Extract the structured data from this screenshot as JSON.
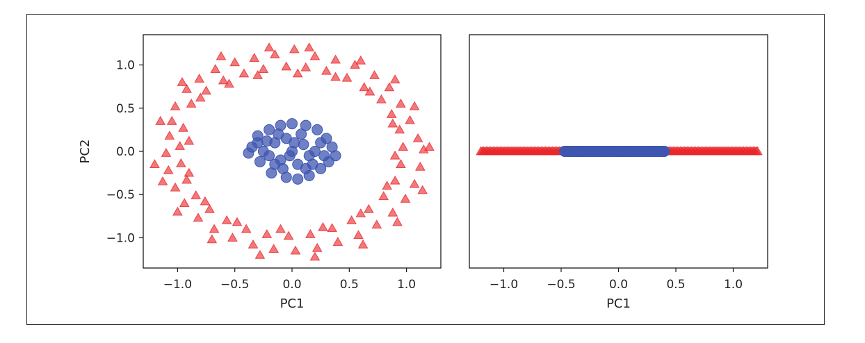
{
  "chart_data": [
    {
      "type": "scatter",
      "xlabel": "PC1",
      "ylabel": "PC2",
      "xlim": [
        -1.3,
        1.3
      ],
      "ylim": [
        -1.35,
        1.35
      ],
      "xticks": [
        -1.0,
        -0.5,
        0.0,
        0.5,
        1.0
      ],
      "xtick_labels": [
        "−1.0",
        "−0.5",
        "0.0",
        "0.5",
        "1.0"
      ],
      "yticks": [
        -1.0,
        -0.5,
        0.0,
        0.5,
        1.0
      ],
      "ytick_labels": [
        "−1.0",
        "−0.5",
        "0.0",
        "0.5",
        "1.0"
      ],
      "series": [
        {
          "marker": "triangle",
          "color": "#e8272b",
          "description_points": [
            [
              -1.02,
              0.52
            ],
            [
              -0.92,
              0.72
            ],
            [
              -0.81,
              0.84
            ],
            [
              -0.67,
              0.95
            ],
            [
              -0.5,
              1.03
            ],
            [
              -0.33,
              1.08
            ],
            [
              -0.15,
              1.12
            ],
            [
              0.02,
              1.18
            ],
            [
              0.2,
              1.1
            ],
            [
              0.38,
              1.06
            ],
            [
              0.55,
              1.0
            ],
            [
              0.72,
              0.88
            ],
            [
              0.85,
              0.74
            ],
            [
              0.95,
              0.55
            ],
            [
              1.03,
              0.36
            ],
            [
              1.1,
              0.15
            ],
            [
              1.15,
              0.02
            ],
            [
              1.12,
              -0.18
            ],
            [
              1.07,
              -0.38
            ],
            [
              0.99,
              -0.55
            ],
            [
              0.88,
              -0.71
            ],
            [
              0.74,
              -0.85
            ],
            [
              0.58,
              -0.97
            ],
            [
              0.4,
              -1.05
            ],
            [
              0.22,
              -1.12
            ],
            [
              0.03,
              -1.15
            ],
            [
              -0.16,
              -1.13
            ],
            [
              -0.34,
              -1.08
            ],
            [
              -0.52,
              -1.0
            ],
            [
              -0.68,
              -0.9
            ],
            [
              -0.82,
              -0.77
            ],
            [
              -0.94,
              -0.6
            ],
            [
              -1.02,
              -0.42
            ],
            [
              -1.08,
              -0.22
            ],
            [
              -1.1,
              -0.02
            ],
            [
              -1.07,
              0.18
            ],
            [
              -1.05,
              0.35
            ],
            [
              -0.88,
              0.55
            ],
            [
              -0.75,
              0.7
            ],
            [
              -0.6,
              0.82
            ],
            [
              -0.42,
              0.9
            ],
            [
              -0.25,
              0.95
            ],
            [
              -0.05,
              0.98
            ],
            [
              0.12,
              0.97
            ],
            [
              0.3,
              0.93
            ],
            [
              0.48,
              0.85
            ],
            [
              0.63,
              0.74
            ],
            [
              0.78,
              0.6
            ],
            [
              0.87,
              0.43
            ],
            [
              0.94,
              0.25
            ],
            [
              0.97,
              0.05
            ],
            [
              0.95,
              -0.15
            ],
            [
              0.9,
              -0.34
            ],
            [
              0.8,
              -0.52
            ],
            [
              0.67,
              -0.67
            ],
            [
              0.52,
              -0.8
            ],
            [
              0.35,
              -0.89
            ],
            [
              0.16,
              -0.96
            ],
            [
              -0.03,
              -0.98
            ],
            [
              -0.22,
              -0.96
            ],
            [
              -0.4,
              -0.9
            ],
            [
              -0.57,
              -0.8
            ],
            [
              -0.72,
              -0.67
            ],
            [
              -0.84,
              -0.51
            ],
            [
              -0.92,
              -0.33
            ],
            [
              -0.97,
              -0.14
            ],
            [
              -0.98,
              0.06
            ],
            [
              -0.95,
              0.27
            ],
            [
              -1.15,
              0.35
            ],
            [
              -1.2,
              -0.15
            ],
            [
              -1.13,
              -0.35
            ],
            [
              -0.96,
              0.8
            ],
            [
              -0.62,
              1.1
            ],
            [
              -0.2,
              1.2
            ],
            [
              0.15,
              1.2
            ],
            [
              0.6,
              1.05
            ],
            [
              0.9,
              0.83
            ],
            [
              1.07,
              0.52
            ],
            [
              1.2,
              0.05
            ],
            [
              1.14,
              -0.45
            ],
            [
              0.92,
              -0.82
            ],
            [
              0.62,
              -1.08
            ],
            [
              0.2,
              -1.22
            ],
            [
              -0.28,
              -1.2
            ],
            [
              -0.7,
              -1.02
            ],
            [
              -1.0,
              -0.7
            ],
            [
              -0.8,
              0.62
            ],
            [
              -0.55,
              0.78
            ],
            [
              -0.3,
              0.88
            ],
            [
              0.05,
              0.9
            ],
            [
              0.38,
              0.86
            ],
            [
              0.68,
              0.69
            ],
            [
              0.88,
              0.32
            ],
            [
              0.9,
              -0.05
            ],
            [
              0.83,
              -0.4
            ],
            [
              0.6,
              -0.72
            ],
            [
              0.27,
              -0.88
            ],
            [
              -0.1,
              -0.9
            ],
            [
              -0.48,
              -0.82
            ],
            [
              -0.76,
              -0.58
            ],
            [
              -0.9,
              -0.25
            ],
            [
              -0.9,
              0.12
            ]
          ]
        },
        {
          "marker": "circle",
          "color": "#3f57b0",
          "description_points": [
            [
              -0.35,
              0.05
            ],
            [
              -0.3,
              0.18
            ],
            [
              -0.28,
              -0.12
            ],
            [
              -0.2,
              0.25
            ],
            [
              -0.18,
              -0.25
            ],
            [
              -0.1,
              0.3
            ],
            [
              -0.05,
              -0.3
            ],
            [
              0.0,
              0.32
            ],
            [
              0.05,
              -0.32
            ],
            [
              0.12,
              0.3
            ],
            [
              0.15,
              -0.28
            ],
            [
              0.22,
              0.25
            ],
            [
              0.25,
              -0.2
            ],
            [
              0.3,
              0.15
            ],
            [
              0.35,
              0.05
            ],
            [
              0.38,
              -0.05
            ],
            [
              0.32,
              -0.12
            ],
            [
              -0.38,
              -0.02
            ],
            [
              -0.25,
              0.0
            ],
            [
              -0.15,
              0.1
            ],
            [
              -0.1,
              -0.1
            ],
            [
              0.0,
              0.0
            ],
            [
              0.1,
              0.08
            ],
            [
              0.15,
              -0.05
            ],
            [
              0.2,
              0.0
            ],
            [
              -0.05,
              0.15
            ],
            [
              0.05,
              -0.15
            ],
            [
              -0.2,
              -0.05
            ],
            [
              0.25,
              0.1
            ],
            [
              -0.3,
              0.1
            ],
            [
              -0.12,
              0.2
            ],
            [
              0.08,
              0.2
            ],
            [
              -0.08,
              -0.2
            ],
            [
              0.18,
              -0.15
            ],
            [
              0.28,
              -0.05
            ],
            [
              -0.22,
              0.12
            ],
            [
              -0.02,
              -0.05
            ],
            [
              0.02,
              0.1
            ],
            [
              0.12,
              -0.2
            ],
            [
              -0.15,
              -0.15
            ]
          ]
        }
      ]
    },
    {
      "type": "scatter",
      "xlabel": "PC1",
      "ylabel": "",
      "xlim": [
        -1.3,
        1.3
      ],
      "ylim": [
        -0.4,
        0.4
      ],
      "xticks": [
        -1.0,
        -0.5,
        0.0,
        0.5,
        1.0
      ],
      "xtick_labels": [
        "−1.0",
        "−0.5",
        "0.0",
        "0.5",
        "1.0"
      ],
      "series": [
        {
          "marker": "triangle",
          "color": "#e8272b",
          "x_range": [
            -1.2,
            1.22
          ],
          "y": 0.0
        },
        {
          "marker": "circle",
          "color": "#3f57b0",
          "x_range": [
            -0.47,
            0.4
          ],
          "y": 0.0
        }
      ]
    }
  ]
}
